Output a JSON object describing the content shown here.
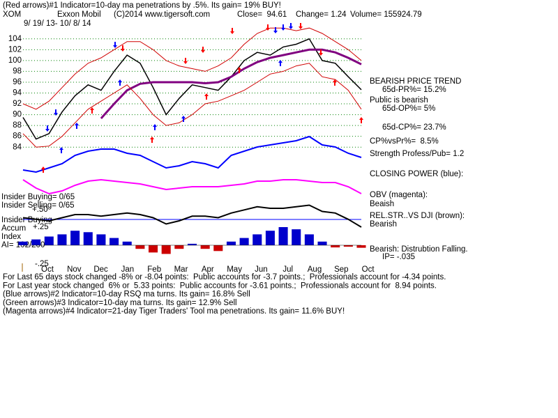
{
  "header": {
    "line1": "(Red arrows)#1 Indicator=10-day ma penetrations by .5%. Its gain= 19% BUY!",
    "symbol": "XOM",
    "company": "Exxon Mobil",
    "copyright": "(C)2014 www.tigersoft.com",
    "close": "Close=  94.61",
    "change": "Change= 1.24",
    "volume": "Volume= 155924.79",
    "dates": "9/ 19/ 13- 10/ 8/ 14"
  },
  "notes": {
    "trend": "BEARISH PRICE TREND",
    "pr": "65d-PR%= 15.2%",
    "public": "Public is bearish",
    "op": "65d-OP%= 5%",
    "cp": "65d-CP%= 23.7%",
    "cpvspr": "CP%vsPr%=  8.5%",
    "strength": "Strength Profess/Pub= 1.2",
    "closing_power": "CLOSING POWER (blue):",
    "obv": "OBV (magenta):",
    "obv_state": "Beaish",
    "relstr": "REL.STR..VS DJI (brown):",
    "relstr_state": "Bearish",
    "accum_state": "Bearish: Distrubtion Falling.",
    "ip": "IP= -.035",
    "insider_buying": "Insider Buying= 0/65",
    "insider_selling": "Insider Selling= 0/65",
    "insider_buying2": "Insider Buying",
    "accum": "Accum",
    "index": "Index",
    "ai": "AI= 102/200",
    "p50": "+.50",
    "p25": "+.25",
    "m25": "-.25"
  },
  "footer": [
    "For Last 65 days stock changed -8% or -8.04 points:  Public accounts for -3.7 points.;  Professionals account for -4.34 points.",
    "For Last year stock changed  6% or  5.33 points:  Public accounts for -3.61 points.;  Professionals account for  8.94 points.",
    "(Blue arrows)#2 Indicator=10-day RSQ ma turns. Its gain= 16.8% Sell",
    "(Green arrows)#3 Indicator=10-day ma turns. Its gain= 12.9% Sell",
    "(Magenta arrows)#4 Indicator=21-day Tiger Traders' Tool ma penetrations. Its gain= 11.6% BUY!"
  ],
  "chart_data": [
    {
      "type": "line",
      "ylim": [
        83,
        105
      ],
      "yticks": [
        84,
        86,
        88,
        90,
        92,
        94,
        96,
        98,
        100,
        102,
        104
      ],
      "grid": true,
      "x_labels": [
        "Oct",
        "Nov",
        "Dec",
        "Jan",
        "Feb",
        "Mar",
        "Apr",
        "May",
        "Jun",
        "Jul",
        "Aug",
        "Sep",
        "Oct"
      ],
      "series": [
        {
          "name": "Price",
          "color": "#000000",
          "values": [
            89.5,
            85.5,
            86.5,
            90.5,
            93.5,
            95.5,
            94.5,
            98,
            101,
            99.5,
            95,
            90,
            93,
            95.5,
            95,
            94.5,
            97,
            100,
            101.5,
            101,
            102.5,
            103,
            104,
            100,
            99.5,
            97,
            94.6
          ]
        },
        {
          "name": "MA",
          "color": "#800080",
          "values": [
            null,
            null,
            null,
            null,
            null,
            null,
            89.3,
            92,
            94.5,
            95.7,
            96,
            96,
            96,
            96,
            95.8,
            96,
            97,
            98.5,
            99.7,
            100.5,
            101,
            101.5,
            102,
            102,
            101.5,
            100.5,
            99.3
          ]
        },
        {
          "name": "Upper",
          "color": "#d00000",
          "values": [
            92,
            91,
            92.5,
            95,
            97.5,
            99.5,
            100.5,
            102,
            103.5,
            103.5,
            102,
            100,
            99,
            98.5,
            98,
            99,
            100.5,
            103,
            105,
            106,
            106,
            105.5,
            106,
            105,
            103.5,
            102,
            100
          ]
        },
        {
          "name": "Lower",
          "color": "#d00000",
          "values": [
            86.5,
            84,
            84.2,
            86,
            88.5,
            91,
            92.5,
            94,
            95.5,
            93,
            90,
            88,
            88.5,
            90,
            92,
            92.5,
            93.5,
            94.5,
            96,
            97.5,
            98,
            99,
            99.5,
            97,
            96.5,
            94.5,
            91
          ]
        }
      ]
    },
    {
      "type": "line",
      "ylim": [
        0,
        100
      ],
      "series": [
        {
          "name": "Closing Power",
          "color": "#0000ff",
          "values": [
            10,
            5,
            15,
            25,
            45,
            55,
            60,
            60,
            50,
            45,
            30,
            15,
            20,
            30,
            25,
            15,
            45,
            55,
            65,
            70,
            75,
            80,
            90,
            70,
            65,
            50,
            40
          ]
        }
      ]
    },
    {
      "type": "line",
      "ylim": [
        0,
        100
      ],
      "series": [
        {
          "name": "OBV",
          "color": "#ff00ff",
          "values": [
            80,
            50,
            30,
            40,
            60,
            75,
            80,
            75,
            70,
            65,
            55,
            45,
            50,
            55,
            55,
            55,
            60,
            65,
            75,
            75,
            80,
            80,
            75,
            70,
            70,
            55,
            30
          ]
        }
      ]
    },
    {
      "type": "line",
      "ylim": [
        0,
        100
      ],
      "series": [
        {
          "name": "Rel Str",
          "color": "#000000",
          "values": [
            50,
            45,
            40,
            50,
            60,
            60,
            55,
            60,
            65,
            60,
            50,
            30,
            40,
            55,
            55,
            50,
            65,
            75,
            85,
            80,
            80,
            85,
            90,
            70,
            65,
            45,
            20
          ]
        }
      ]
    },
    {
      "type": "bar",
      "ylim": [
        -0.25,
        0.25
      ],
      "pos_color": "#0000cc",
      "neg_color": "#cc0000",
      "values": [
        0.05,
        0.08,
        0.12,
        0.15,
        0.2,
        0.18,
        0.15,
        0.1,
        0.05,
        -0.05,
        -0.1,
        -0.12,
        -0.05,
        0.02,
        -0.05,
        -0.08,
        0.05,
        0.1,
        0.15,
        0.2,
        0.25,
        0.22,
        0.15,
        0.05,
        -0.03,
        -0.02,
        -0.035
      ]
    }
  ]
}
